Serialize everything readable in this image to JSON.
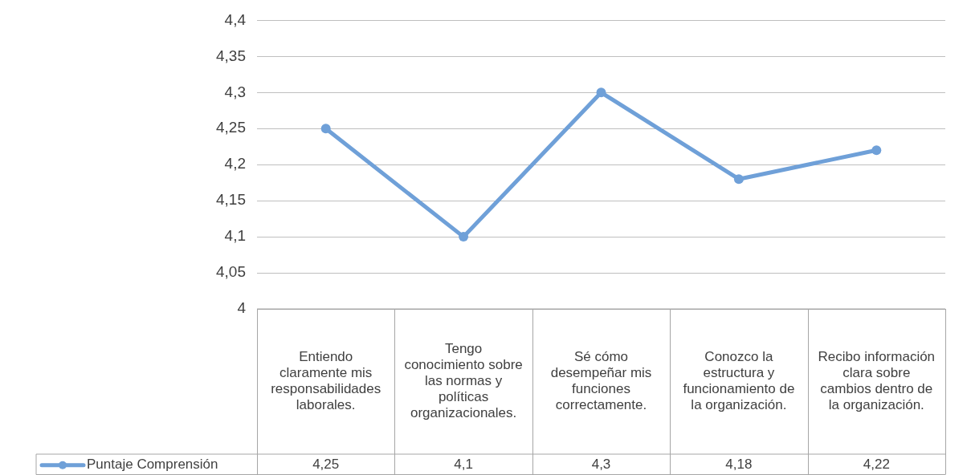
{
  "chart_data": {
    "type": "line",
    "categories": [
      "Entiendo claramente mis responsabilidades laborales.",
      "Tengo conocimiento sobre las normas y políticas organizacionales.",
      "Sé cómo desempeñar mis funciones correctamente.",
      "Conozco la estructura y funcionamiento de la organización.",
      "Recibo información clara sobre cambios dentro de la organización."
    ],
    "series": [
      {
        "name": "Puntaje Comprensión",
        "color": "#6fa0d8",
        "values": [
          4.25,
          4.1,
          4.3,
          4.18,
          4.22
        ],
        "value_labels": [
          "4,25",
          "4,1",
          "4,3",
          "4,18",
          "4,22"
        ]
      }
    ],
    "ylim": [
      4,
      4.4
    ],
    "yticks": [
      {
        "value": 4,
        "label": "4"
      },
      {
        "value": 4.05,
        "label": "4,05"
      },
      {
        "value": 4.1,
        "label": "4,1"
      },
      {
        "value": 4.15,
        "label": "4,15"
      },
      {
        "value": 4.2,
        "label": "4,2"
      },
      {
        "value": 4.25,
        "label": "4,25"
      },
      {
        "value": 4.3,
        "label": "4,3"
      },
      {
        "value": 4.35,
        "label": "4,35"
      },
      {
        "value": 4.4,
        "label": "4,4"
      }
    ],
    "grid": "y",
    "legend": "bottom left",
    "marker": "circle",
    "line_style": "solid"
  }
}
